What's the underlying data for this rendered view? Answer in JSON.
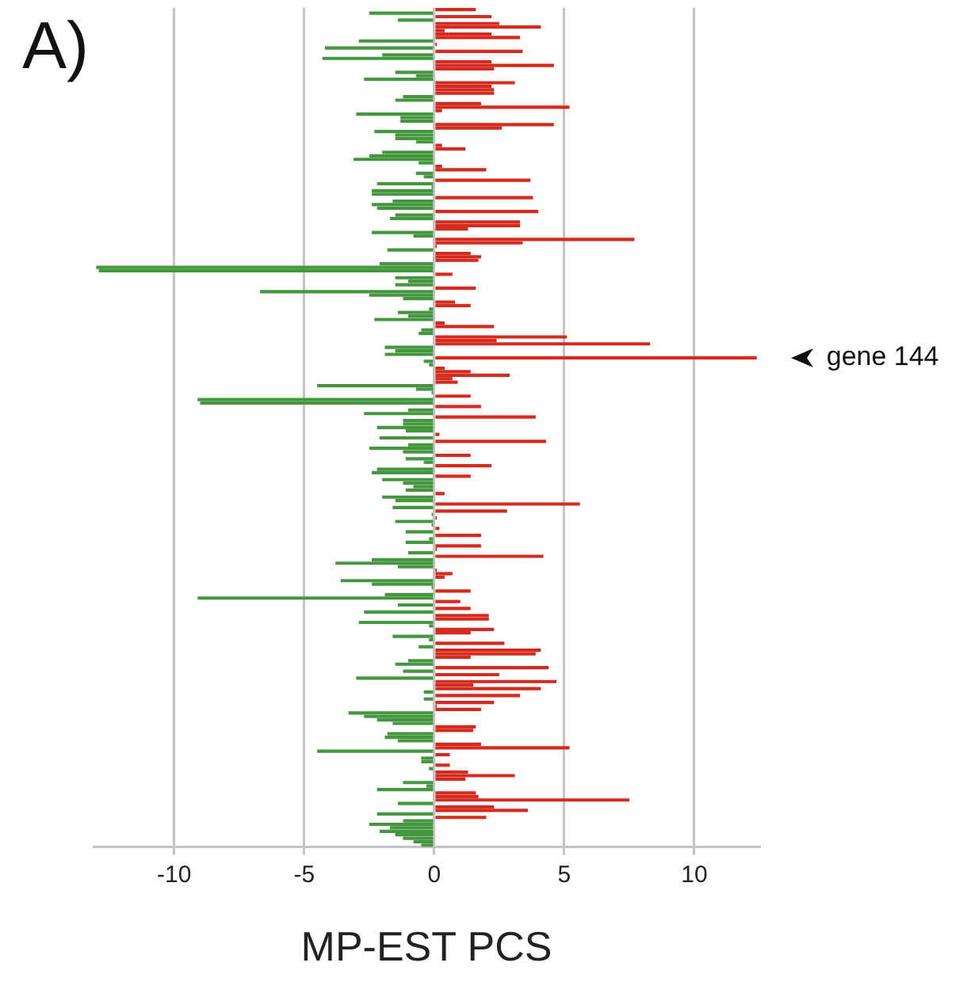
{
  "chart_data": {
    "type": "bar",
    "orientation": "horizontal",
    "title": "A)",
    "xlabel": "MP-EST PCS",
    "categories": [
      null,
      null,
      null,
      null,
      null,
      null,
      null,
      null,
      null,
      null,
      null,
      null,
      null,
      null,
      null,
      null,
      null,
      null,
      null,
      null,
      null,
      null,
      null,
      null,
      null,
      null,
      null,
      null,
      null,
      null,
      null,
      null,
      null,
      null,
      null,
      null,
      null,
      null,
      null,
      null,
      null,
      null,
      null,
      null,
      null,
      null,
      null,
      null,
      null,
      null,
      null,
      null,
      null,
      null,
      null,
      null,
      null,
      null,
      null,
      null,
      null,
      null,
      null,
      null,
      null,
      null,
      null,
      null,
      null,
      null,
      null,
      null,
      null,
      null,
      null,
      null,
      null,
      null,
      null,
      null,
      null,
      null,
      null,
      null,
      null,
      null,
      null,
      null,
      null,
      null,
      null,
      null,
      null,
      null,
      null,
      null,
      null,
      null,
      null,
      null,
      null,
      null,
      null,
      null,
      null,
      null,
      null,
      null,
      null,
      null,
      null,
      null,
      null,
      null,
      null,
      null,
      null,
      null,
      null,
      null,
      null,
      null,
      null,
      null,
      null,
      null,
      null,
      null,
      null,
      null,
      null,
      null,
      null,
      null,
      null,
      null,
      null,
      null,
      null,
      null,
      null,
      null,
      null,
      null,
      null,
      null,
      null,
      null,
      null,
      null,
      null,
      null,
      null,
      null,
      null,
      null,
      null,
      null,
      null,
      null,
      null,
      null,
      null,
      null,
      null,
      null,
      null,
      null,
      null,
      null,
      null,
      null,
      null,
      null,
      null,
      null,
      null,
      null,
      null,
      null,
      null,
      null,
      null,
      null,
      null,
      null,
      null,
      null,
      null,
      null,
      null,
      null,
      null,
      null,
      null,
      null,
      null,
      null,
      null,
      null,
      null,
      null,
      null,
      null,
      null,
      null,
      null,
      null,
      null,
      null,
      null,
      null,
      null,
      null,
      null,
      null,
      null,
      null,
      null,
      null,
      null,
      null,
      null,
      null,
      null,
      null,
      null,
      null,
      null,
      null,
      null,
      null,
      null,
      null,
      null,
      null,
      null,
      null,
      null,
      null,
      null
    ],
    "values": [
      1.6,
      -2.5,
      2.2,
      -1.4,
      2.5,
      4.1,
      0.4,
      2.2,
      3.3,
      -2.9,
      0.1,
      -4.2,
      3.4,
      -2.0,
      -4.3,
      2.2,
      4.6,
      2.3,
      -1.5,
      -0.7,
      -2.7,
      3.1,
      2.2,
      2.3,
      2.3,
      -1.2,
      -1.5,
      1.8,
      5.2,
      0.3,
      -3.0,
      -1.3,
      -1.3,
      4.6,
      2.6,
      -2.3,
      -1.5,
      -1.5,
      -0.7,
      0.3,
      1.2,
      -2.0,
      -2.5,
      -3.1,
      -0.6,
      0.3,
      2.0,
      -0.7,
      -0.4,
      3.7,
      -2.2,
      -0.1,
      -2.4,
      -2.4,
      3.8,
      -1.6,
      -2.4,
      -2.2,
      4.0,
      -1.5,
      -1.7,
      3.3,
      3.3,
      1.3,
      -2.4,
      -0.8,
      7.7,
      3.4,
      0.1,
      -1.8,
      1.4,
      1.8,
      1.7,
      -2.1,
      -13.0,
      -12.9,
      0.7,
      -1.5,
      -1.0,
      -1.5,
      1.6,
      -6.7,
      -2.5,
      -1.2,
      0.8,
      1.4,
      -0.2,
      -1.4,
      -1.0,
      -2.3,
      0.4,
      2.3,
      -0.5,
      -0.6,
      5.1,
      2.4,
      8.3,
      -1.9,
      -1.5,
      -1.9,
      12.4,
      -0.4,
      -0.2,
      0.4,
      1.4,
      2.9,
      0.7,
      0.9,
      -4.5,
      -0.7,
      -0.1,
      1.4,
      -9.1,
      -9.0,
      1.8,
      -1.0,
      -2.7,
      3.9,
      -1.2,
      -1.2,
      -2.2,
      -1.1,
      0.2,
      -2.1,
      4.3,
      -1.0,
      -2.5,
      -1.2,
      1.4,
      -1.1,
      -0.4,
      2.2,
      -2.2,
      -2.4,
      1.4,
      -2.0,
      -1.2,
      -0.8,
      -1.1,
      0.4,
      -2.0,
      -1.5,
      5.6,
      -1.6,
      2.8,
      -0.1,
      0.1,
      -1.5,
      -0.1,
      0.2,
      -1.1,
      1.8,
      -0.2,
      -1.1,
      1.8,
      0.1,
      -1.0,
      4.2,
      -2.4,
      -3.8,
      -1.4,
      0.1,
      0.7,
      0.4,
      -3.6,
      -2.4,
      -0.1,
      1.4,
      -1.9,
      -9.1,
      1.0,
      -1.4,
      1.4,
      -2.7,
      2.1,
      2.1,
      -2.9,
      -0.2,
      2.3,
      1.4,
      -1.6,
      -0.2,
      2.7,
      -0.6,
      4.1,
      3.9,
      1.4,
      -1.0,
      -1.5,
      4.4,
      -1.2,
      2.5,
      -3.0,
      4.7,
      1.5,
      4.1,
      -0.4,
      3.3,
      -0.4,
      2.3,
      0.1,
      1.8,
      -3.3,
      -2.7,
      -2.2,
      -1.6,
      1.6,
      1.5,
      -1.8,
      -1.9,
      -1.4,
      1.8,
      5.2,
      -4.5,
      0.6,
      -0.5,
      -0.5,
      0.6,
      -0.2,
      1.3,
      3.1,
      1.2,
      -1.2,
      -0.3,
      -2.2,
      1.6,
      1.7,
      7.5,
      -1.4,
      2.3,
      3.6,
      -2.2,
      2.0,
      -1.2,
      -2.5,
      -1.7,
      -2.1,
      -1.5,
      -1.2,
      -0.8,
      -0.5
    ],
    "colors": [
      "#d52b1e",
      "#45973f",
      "#d52b1e",
      "#45973f",
      "#d52b1e",
      "#d52b1e",
      "#d52b1e",
      "#d52b1e",
      "#d52b1e",
      "#45973f",
      "#d52b1e",
      "#45973f",
      "#d52b1e",
      "#45973f",
      "#45973f",
      "#d52b1e",
      "#d52b1e",
      "#d52b1e",
      "#45973f",
      "#45973f",
      "#45973f",
      "#d52b1e",
      "#d52b1e",
      "#d52b1e",
      "#d52b1e",
      "#45973f",
      "#45973f",
      "#d52b1e",
      "#d52b1e",
      "#d52b1e",
      "#45973f",
      "#45973f",
      "#45973f",
      "#d52b1e",
      "#d52b1e",
      "#45973f",
      "#45973f",
      "#45973f",
      "#45973f",
      "#d52b1e",
      "#d52b1e",
      "#45973f",
      "#45973f",
      "#45973f",
      "#45973f",
      "#d52b1e",
      "#d52b1e",
      "#45973f",
      "#45973f",
      "#d52b1e",
      "#45973f",
      "#45973f",
      "#45973f",
      "#45973f",
      "#d52b1e",
      "#45973f",
      "#45973f",
      "#45973f",
      "#d52b1e",
      "#45973f",
      "#45973f",
      "#d52b1e",
      "#d52b1e",
      "#d52b1e",
      "#45973f",
      "#45973f",
      "#d52b1e",
      "#d52b1e",
      "#d52b1e",
      "#45973f",
      "#d52b1e",
      "#d52b1e",
      "#d52b1e",
      "#45973f",
      "#45973f",
      "#45973f",
      "#d52b1e",
      "#45973f",
      "#45973f",
      "#45973f",
      "#d52b1e",
      "#45973f",
      "#45973f",
      "#45973f",
      "#d52b1e",
      "#d52b1e",
      "#45973f",
      "#45973f",
      "#45973f",
      "#45973f",
      "#d52b1e",
      "#d52b1e",
      "#45973f",
      "#45973f",
      "#d52b1e",
      "#d52b1e",
      "#d52b1e",
      "#45973f",
      "#45973f",
      "#45973f",
      "#d52b1e",
      "#45973f",
      "#45973f",
      "#d52b1e",
      "#d52b1e",
      "#d52b1e",
      "#d52b1e",
      "#d52b1e",
      "#45973f",
      "#45973f",
      "#45973f",
      "#d52b1e",
      "#45973f",
      "#45973f",
      "#d52b1e",
      "#45973f",
      "#45973f",
      "#d52b1e",
      "#45973f",
      "#45973f",
      "#45973f",
      "#45973f",
      "#d52b1e",
      "#45973f",
      "#d52b1e",
      "#45973f",
      "#45973f",
      "#45973f",
      "#d52b1e",
      "#45973f",
      "#45973f",
      "#d52b1e",
      "#45973f",
      "#45973f",
      "#d52b1e",
      "#45973f",
      "#45973f",
      "#45973f",
      "#45973f",
      "#d52b1e",
      "#45973f",
      "#45973f",
      "#d52b1e",
      "#45973f",
      "#d52b1e",
      "#45973f",
      "#d52b1e",
      "#45973f",
      "#45973f",
      "#d52b1e",
      "#45973f",
      "#d52b1e",
      "#45973f",
      "#45973f",
      "#d52b1e",
      "#d52b1e",
      "#45973f",
      "#d52b1e",
      "#45973f",
      "#45973f",
      "#45973f",
      "#d52b1e",
      "#d52b1e",
      "#d52b1e",
      "#45973f",
      "#45973f",
      "#45973f",
      "#d52b1e",
      "#45973f",
      "#45973f",
      "#d52b1e",
      "#45973f",
      "#d52b1e",
      "#45973f",
      "#d52b1e",
      "#d52b1e",
      "#45973f",
      "#45973f",
      "#d52b1e",
      "#d52b1e",
      "#45973f",
      "#45973f",
      "#d52b1e",
      "#45973f",
      "#d52b1e",
      "#d52b1e",
      "#d52b1e",
      "#45973f",
      "#45973f",
      "#d52b1e",
      "#45973f",
      "#d52b1e",
      "#45973f",
      "#d52b1e",
      "#d52b1e",
      "#d52b1e",
      "#45973f",
      "#d52b1e",
      "#45973f",
      "#d52b1e",
      "#d52b1e",
      "#d52b1e",
      "#45973f",
      "#45973f",
      "#45973f",
      "#45973f",
      "#d52b1e",
      "#d52b1e",
      "#45973f",
      "#45973f",
      "#45973f",
      "#d52b1e",
      "#d52b1e",
      "#45973f",
      "#d52b1e",
      "#45973f",
      "#45973f",
      "#d52b1e",
      "#45973f",
      "#d52b1e",
      "#d52b1e",
      "#d52b1e",
      "#45973f",
      "#45973f",
      "#45973f",
      "#d52b1e",
      "#d52b1e",
      "#d52b1e",
      "#45973f",
      "#d52b1e",
      "#d52b1e",
      "#45973f",
      "#d52b1e",
      "#45973f",
      "#45973f",
      "#45973f",
      "#45973f",
      "#45973f",
      "#45973f",
      "#45973f",
      "#45973f"
    ],
    "xlim": [
      -13.1,
      12.5
    ],
    "xticks": [
      -10,
      -5,
      0,
      5,
      10
    ],
    "grid": "x",
    "annotations": [
      {
        "text": "gene 144",
        "x": 12.4
      }
    ]
  }
}
